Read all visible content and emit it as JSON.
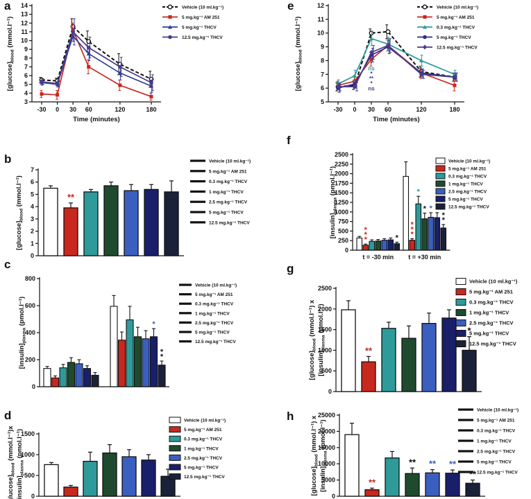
{
  "chart_data": [
    {
      "panel": "a",
      "type": "line",
      "x": [
        -30,
        0,
        30,
        60,
        120,
        180
      ],
      "xticks": [
        "-30",
        "0",
        "30",
        "60",
        "120",
        "180"
      ],
      "ylim": [
        3,
        14
      ],
      "yticks": [
        "3",
        "4",
        "5",
        "6",
        "7",
        "8",
        "9",
        "10",
        "11",
        "12",
        "13",
        "14"
      ],
      "xlabel": "Time (minutes)",
      "ylabel": "[glucose]",
      "ylabel_sub": "blood",
      "ylabel_unit": "(mmol.l⁻¹)",
      "series": [
        {
          "name": "Vehicle (10 ml.kg⁻¹)",
          "values": [
            5.5,
            5.4,
            11.6,
            9.9,
            7.3,
            5.6
          ],
          "color": "#111111",
          "dashed": true,
          "marker": "open-circle"
        },
        {
          "name": "5 mg.kg⁻¹ AM 251",
          "values": [
            3.9,
            3.8,
            11.2,
            7.0,
            4.9,
            3.6
          ],
          "color": "#c8281e"
        },
        {
          "name": "5 mg.kg⁻¹ THCV",
          "values": [
            5.2,
            5.0,
            10.5,
            8.5,
            6.3,
            4.8
          ],
          "color": "#2a3f9d"
        },
        {
          "name": "12.5 mg.kg⁻¹ THCV",
          "values": [
            5.3,
            5.1,
            11.0,
            9.2,
            7.0,
            5.2
          ],
          "color": "#4a3a8a"
        }
      ],
      "errors": [
        [
          0.3,
          0.3,
          0.9,
          1.2,
          1.2,
          0.9
        ],
        [
          0.4,
          0.5,
          0.8,
          0.8,
          0.6,
          0.4
        ],
        [
          0.3,
          0.3,
          0.6,
          0.8,
          0.8,
          0.7
        ],
        [
          0.3,
          0.3,
          1.5,
          1.2,
          1.1,
          0.9
        ]
      ]
    },
    {
      "panel": "e",
      "type": "line",
      "x": [
        -30,
        0,
        30,
        60,
        120,
        180
      ],
      "xticks": [
        "-30",
        "0",
        "30",
        "60",
        "120",
        "180"
      ],
      "ylim": [
        5,
        12
      ],
      "yticks": [
        "5",
        "6",
        "7",
        "8",
        "9",
        "10",
        "11",
        "12"
      ],
      "xlabel": "Time (minutes)",
      "ylabel": "[glucose]",
      "ylabel_sub": "blood",
      "ylabel_unit": "(mmol.l⁻¹)",
      "series": [
        {
          "name": "Vehicle (10 ml.kg⁻¹)",
          "values": [
            6.1,
            6.2,
            10.0,
            10.1,
            7.2,
            6.8
          ],
          "color": "#111111",
          "dashed": true,
          "marker": "open-circle"
        },
        {
          "name": "5 mg.kg⁻¹ AM 251",
          "values": [
            6.2,
            6.5,
            8.1,
            9.1,
            7.1,
            6.2
          ],
          "color": "#c8281e"
        },
        {
          "name": "0.3 mg.kg⁻¹ THCV",
          "values": [
            6.3,
            6.9,
            9.6,
            9.2,
            8.0,
            7.0
          ],
          "color": "#2f9a9a"
        },
        {
          "name": "5 mg.kg⁻¹ THCV",
          "values": [
            6.0,
            6.3,
            8.4,
            9.0,
            7.1,
            6.8
          ],
          "color": "#2a2f8a"
        },
        {
          "name": "12.5 mg.kg⁻¹ THCV",
          "values": [
            6.1,
            6.1,
            8.6,
            9.1,
            7.0,
            6.8
          ],
          "color": "#4a3a8a"
        }
      ],
      "errors": [
        [
          0.3,
          0.3,
          0.3,
          0.5,
          0.4,
          0.3
        ],
        [
          0.3,
          0.4,
          0.5,
          0.4,
          0.4,
          0.4
        ],
        [
          0.3,
          0.4,
          0.5,
          0.5,
          0.4,
          0.3
        ],
        [
          0.3,
          0.3,
          0.5,
          0.5,
          0.3,
          0.3
        ],
        [
          0.3,
          0.3,
          0.5,
          0.5,
          0.3,
          0.3
        ]
      ],
      "annotations": [
        {
          "x": 30,
          "text": "*",
          "color": "#c8281e"
        },
        {
          "x": 30,
          "text": "ns",
          "color": "#2f9a9a"
        },
        {
          "x": 30,
          "text": "*",
          "color": "#2a2f8a"
        },
        {
          "x": 30,
          "text": "**",
          "color": "#2a3f9d"
        },
        {
          "x": 30,
          "text": "*",
          "color": "#2a2f8a"
        },
        {
          "x": 30,
          "text": "ns",
          "color": "#4a3a8a"
        }
      ]
    },
    {
      "panel": "b",
      "type": "bar",
      "categories": [
        "Vehicle (10 ml.kg⁻¹)",
        "5 mg.kg⁻¹ AM 251",
        "0.3 mg.kg⁻¹ THCV",
        "1 mg.kg⁻¹ THCV",
        "2.5 mg.kg⁻¹ THCV",
        "5 mg.kg⁻¹ THCV",
        "12.5 mg.kg⁻¹ THCV"
      ],
      "values": [
        5.5,
        3.9,
        5.2,
        5.7,
        5.3,
        5.4,
        5.2
      ],
      "errors": [
        0.2,
        0.4,
        0.2,
        0.3,
        0.5,
        0.4,
        0.9
      ],
      "stars": [
        "",
        "**",
        "",
        "",
        "",
        "",
        ""
      ],
      "ylim": [
        0,
        7
      ],
      "yticks": [
        "0",
        "1",
        "2",
        "3",
        "4",
        "5",
        "6",
        "7"
      ],
      "ylabel": "[glucose]",
      "ylabel_sub": "blood",
      "ylabel_unit": "(mmol.l⁻¹)"
    },
    {
      "panel": "f",
      "type": "bar",
      "groups": [
        "t = -30 min",
        "t = +30 min"
      ],
      "categories": [
        "Vehicle (10 ml.kg⁻¹)",
        "5 mg.kg⁻¹ AM 251",
        "0.3 mg.kg⁻¹ THCV",
        "1 mg.kg⁻¹ THCV",
        "2.5 mg.kg⁻¹ THCV",
        "5 mg.kg⁻¹ THCV",
        "12.5 mg.kg⁻¹ THCV"
      ],
      "series": [
        {
          "name": "t = -30 min",
          "values": [
            320,
            130,
            230,
            240,
            260,
            270,
            170
          ],
          "errors": [
            40,
            30,
            40,
            40,
            40,
            50,
            40
          ],
          "stars": [
            "",
            "***",
            "",
            "",
            "",
            "",
            "*"
          ]
        },
        {
          "name": "t = +30 min",
          "values": [
            1930,
            260,
            1210,
            820,
            860,
            850,
            580
          ],
          "errors": [
            380,
            40,
            200,
            150,
            120,
            130,
            90
          ],
          "stars": [
            "",
            "***",
            "*",
            "*",
            "*",
            "*",
            "**"
          ]
        }
      ],
      "ylim": [
        0,
        2500
      ],
      "yticks": [
        "0",
        "250",
        "500",
        "750",
        "1000",
        "1250",
        "1500",
        "1750",
        "2000",
        "2250",
        "2500"
      ],
      "ylabel": "[insulin]",
      "ylabel_sub": "plasma",
      "ylabel_unit": "(pmol.l⁻¹)"
    },
    {
      "panel": "c",
      "type": "bar",
      "groups": [
        "t = -30 min",
        "t = +30 min"
      ],
      "categories": [
        "Vehicle (10 ml.kg⁻¹)",
        "5 mg.kg⁻¹ AM 251",
        "0.3 mg.kg⁻¹ THCV",
        "1 mg.kg⁻¹ THCV",
        "2.5 mg.kg⁻¹ THCV",
        "5 mg.kg⁻¹ THCV",
        "12.5 mg.kg⁻¹ THCV"
      ],
      "series": [
        {
          "name": "t = -30 min",
          "values": [
            135,
            65,
            140,
            180,
            170,
            135,
            85
          ],
          "errors": [
            15,
            15,
            25,
            35,
            30,
            20,
            20
          ],
          "stars": [
            "",
            "",
            "",
            "",
            "",
            "",
            ""
          ]
        },
        {
          "name": "t = +30 min",
          "values": [
            595,
            345,
            495,
            370,
            355,
            370,
            160
          ],
          "errors": [
            80,
            60,
            100,
            70,
            60,
            60,
            30
          ],
          "stars": [
            "",
            "",
            "",
            "",
            "",
            "*",
            "**"
          ]
        }
      ],
      "ylim": [
        0,
        800
      ],
      "yticks": [
        "0",
        "200",
        "400",
        "600",
        "800"
      ],
      "ylabel": "[insulin]",
      "ylabel_sub": "plasma",
      "ylabel_unit": "(pmol.l⁻¹)"
    },
    {
      "panel": "g",
      "type": "bar",
      "categories": [
        "Vehicle (10 ml.kg⁻¹)",
        "5 mg.kg⁻¹ AM 251",
        "0.3 mg.kg⁻¹ THCV",
        "1 mg.kg⁻¹ THCV",
        "2.5 mg.kg⁻¹ THCV",
        "5 mg.kg⁻¹ THCV",
        "12.5 mg.kg⁻¹ THCV"
      ],
      "values": [
        1980,
        720,
        1530,
        1290,
        1650,
        1780,
        1000
      ],
      "errors": [
        220,
        130,
        150,
        300,
        250,
        200,
        330
      ],
      "stars": [
        "",
        "**",
        "",
        "",
        "",
        "",
        "*"
      ],
      "ylim": [
        0,
        2500
      ],
      "yticks": [
        "0",
        "500",
        "1000",
        "1500",
        "2000",
        "2500"
      ],
      "ylabel": "[glucose]",
      "ylabel_sub": "blood",
      "ylabel_unit": "(mmol.l⁻¹) x",
      "ylabel2": "[insulin]",
      "ylabel2_sub": "plasma",
      "ylabel2_unit": "(pmol.l⁻¹)"
    },
    {
      "panel": "d",
      "type": "bar",
      "categories": [
        "Vehicle (10 ml.kg⁻¹)",
        "5 mg.kg⁻¹ AM 251",
        "0.3 mg.kg⁻¹ THCV",
        "1 mg.kg⁻¹ THCV",
        "2.5 mg.kg⁻¹ THCV",
        "5 mg.kg⁻¹ THCV",
        "12.5 mg.kg⁻¹ THCV"
      ],
      "values": [
        760,
        220,
        840,
        1040,
        950,
        870,
        480
      ],
      "errors": [
        50,
        40,
        220,
        200,
        170,
        130,
        170
      ],
      "stars": [
        "",
        "",
        "",
        "",
        "",
        "",
        ""
      ],
      "ylim": [
        0,
        1500
      ],
      "yticks": [
        "0",
        "500",
        "1000",
        "1500"
      ],
      "ylabel": "[glucose]",
      "ylabel_sub": "blood",
      "ylabel_unit": "(mmol.l⁻¹)x",
      "ylabel2": "[insulin]",
      "ylabel2_sub": "plasma",
      "ylabel2_unit": "(pmol.l⁻¹)"
    },
    {
      "panel": "h",
      "type": "bar",
      "categories": [
        "Vehicle (10 ml.kg⁻¹)",
        "5 mg.kg⁻¹ AM 251",
        "0.3 mg.kg⁻¹ THCV",
        "1 mg.kg⁻¹ THCV",
        "2.5 mg.kg⁻¹ THCV",
        "5 mg.kg⁻¹ THCV",
        "12.5 mg.kg⁻¹ THCV"
      ],
      "values": [
        19000,
        2000,
        11800,
        7000,
        7200,
        7100,
        4000
      ],
      "errors": [
        3500,
        500,
        2000,
        1700,
        1000,
        1000,
        1000
      ],
      "stars": [
        "",
        "**",
        "",
        "**",
        "**",
        "**",
        "**"
      ],
      "ylim": [
        0,
        25000
      ],
      "yticks": [
        "0",
        "5000",
        "10000",
        "15000",
        "20000",
        "25000"
      ],
      "ylabel": "[glucose]",
      "ylabel_sub": "blood",
      "ylabel_unit": "(mmol.l⁻¹) x",
      "ylabel2": "[insulin]",
      "ylabel2_sub": "plasma",
      "ylabel2_unit": "(pmol.l⁻¹)"
    }
  ],
  "legend_labels": [
    "Vehicle (10 ml.kg⁻¹)",
    "5 mg.kg⁻¹ AM 251",
    "0.3 mg.kg⁻¹ THCV",
    "1 mg.kg⁻¹ THCV",
    "2.5 mg.kg⁻¹ THCV",
    "5 mg.kg⁻¹ THCV",
    "12.5 mg.kg⁻¹ THCV"
  ],
  "colors": {
    "vehicle": "#ffffff",
    "am251": "#c8281e",
    "thcv_0_3": "#2f9a9a",
    "thcv_1": "#1f4a2e",
    "thcv_2_5": "#3a5fc0",
    "thcv_5": "#1a1f6a",
    "thcv_12_5": "#1a2138",
    "star_blue": "#3a5fc0"
  }
}
